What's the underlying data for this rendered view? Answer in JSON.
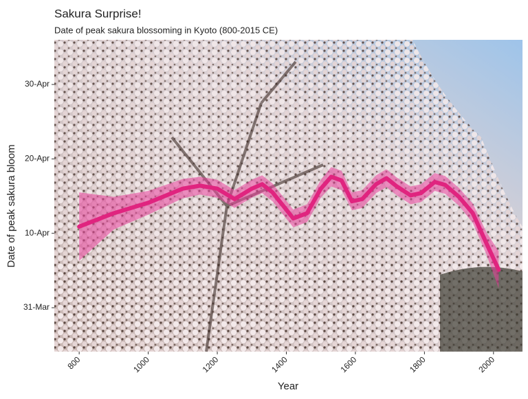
{
  "chart_data": {
    "type": "line",
    "title": "Sakura Surprise!",
    "subtitle": "Date of peak sakura blossoming in Kyoto (800-2015 CE)",
    "x_label": "Year",
    "y_label": "Date of peak sakura bloom",
    "xlim": [
      728,
      2084
    ],
    "xticks": [
      800,
      1000,
      1200,
      1400,
      1600,
      1800,
      2000
    ],
    "ylim": [
      84.1,
      126
    ],
    "yticks": [
      {
        "value": 90,
        "label": "31-Mar"
      },
      {
        "value": 100,
        "label": "10-Apr"
      },
      {
        "value": 110,
        "label": "20-Apr"
      },
      {
        "value": 120,
        "label": "30-Apr"
      }
    ],
    "series": [
      {
        "color": "#e0247f",
        "x": [
          800,
          900,
          1000,
          1100,
          1150,
          1200,
          1250,
          1300,
          1330,
          1360,
          1420,
          1460,
          1500,
          1530,
          1560,
          1590,
          1620,
          1660,
          1690,
          1720,
          1760,
          1790,
          1830,
          1860,
          1900,
          1940,
          1980,
          2015
        ],
        "values": [
          100.9,
          102.7,
          104.1,
          106.0,
          106.4,
          106.0,
          104.6,
          106.0,
          106.6,
          105.5,
          102.0,
          102.7,
          106.0,
          107.6,
          107.1,
          104.3,
          104.6,
          106.6,
          107.4,
          106.3,
          105.1,
          105.4,
          106.9,
          106.5,
          104.9,
          102.7,
          98.6,
          95.1
        ]
      }
    ],
    "band": {
      "color": "#e8409a",
      "lower": [
        96.3,
        100.5,
        102.5,
        104.7,
        105.2,
        104.8,
        103.4,
        104.8,
        105.4,
        104.3,
        100.8,
        101.5,
        104.8,
        106.3,
        105.8,
        103.1,
        103.4,
        105.4,
        106.2,
        105.1,
        103.9,
        104.2,
        105.7,
        105.3,
        103.7,
        101.4,
        97.1,
        92.6
      ],
      "upper": [
        105.5,
        104.9,
        105.7,
        107.3,
        107.6,
        107.2,
        105.8,
        107.2,
        107.8,
        106.7,
        103.2,
        103.9,
        107.2,
        108.9,
        108.4,
        105.5,
        105.8,
        107.8,
        108.6,
        107.5,
        106.3,
        106.6,
        108.1,
        107.7,
        106.1,
        104.0,
        100.1,
        97.6
      ]
    }
  }
}
